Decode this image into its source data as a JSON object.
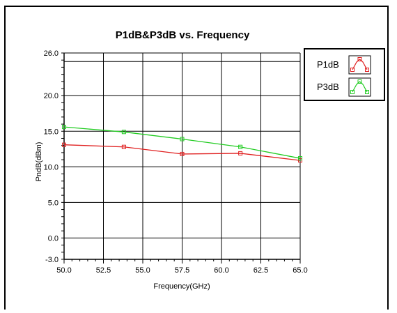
{
  "chart_data": {
    "type": "line",
    "title": "P1dB&P3dB vs. Frequency",
    "xlabel": "Frequency(GHz)",
    "ylabel": "PndB(dBm)",
    "xlim": [
      50.0,
      65.0
    ],
    "ylim": [
      -3.0,
      26.0
    ],
    "x_ticks": [
      "50.0",
      "52.5",
      "55.0",
      "57.5",
      "60.0",
      "62.5",
      "65.0"
    ],
    "y_ticks": [
      "26.0",
      "20.0",
      "15.0",
      "10.0",
      "5.0",
      "0.0",
      "-3.0"
    ],
    "grid": true,
    "legend_position": "top-right",
    "series": [
      {
        "name": "P1dB",
        "color": "#e02020",
        "x": [
          50.0,
          53.8,
          57.5,
          61.2,
          65.0
        ],
        "y": [
          13.1,
          12.8,
          11.8,
          11.9,
          10.9
        ]
      },
      {
        "name": "P3dB",
        "color": "#22cc22",
        "x": [
          50.0,
          53.8,
          57.5,
          61.2,
          65.0
        ],
        "y": [
          15.6,
          14.9,
          13.9,
          12.8,
          11.2
        ]
      }
    ]
  }
}
